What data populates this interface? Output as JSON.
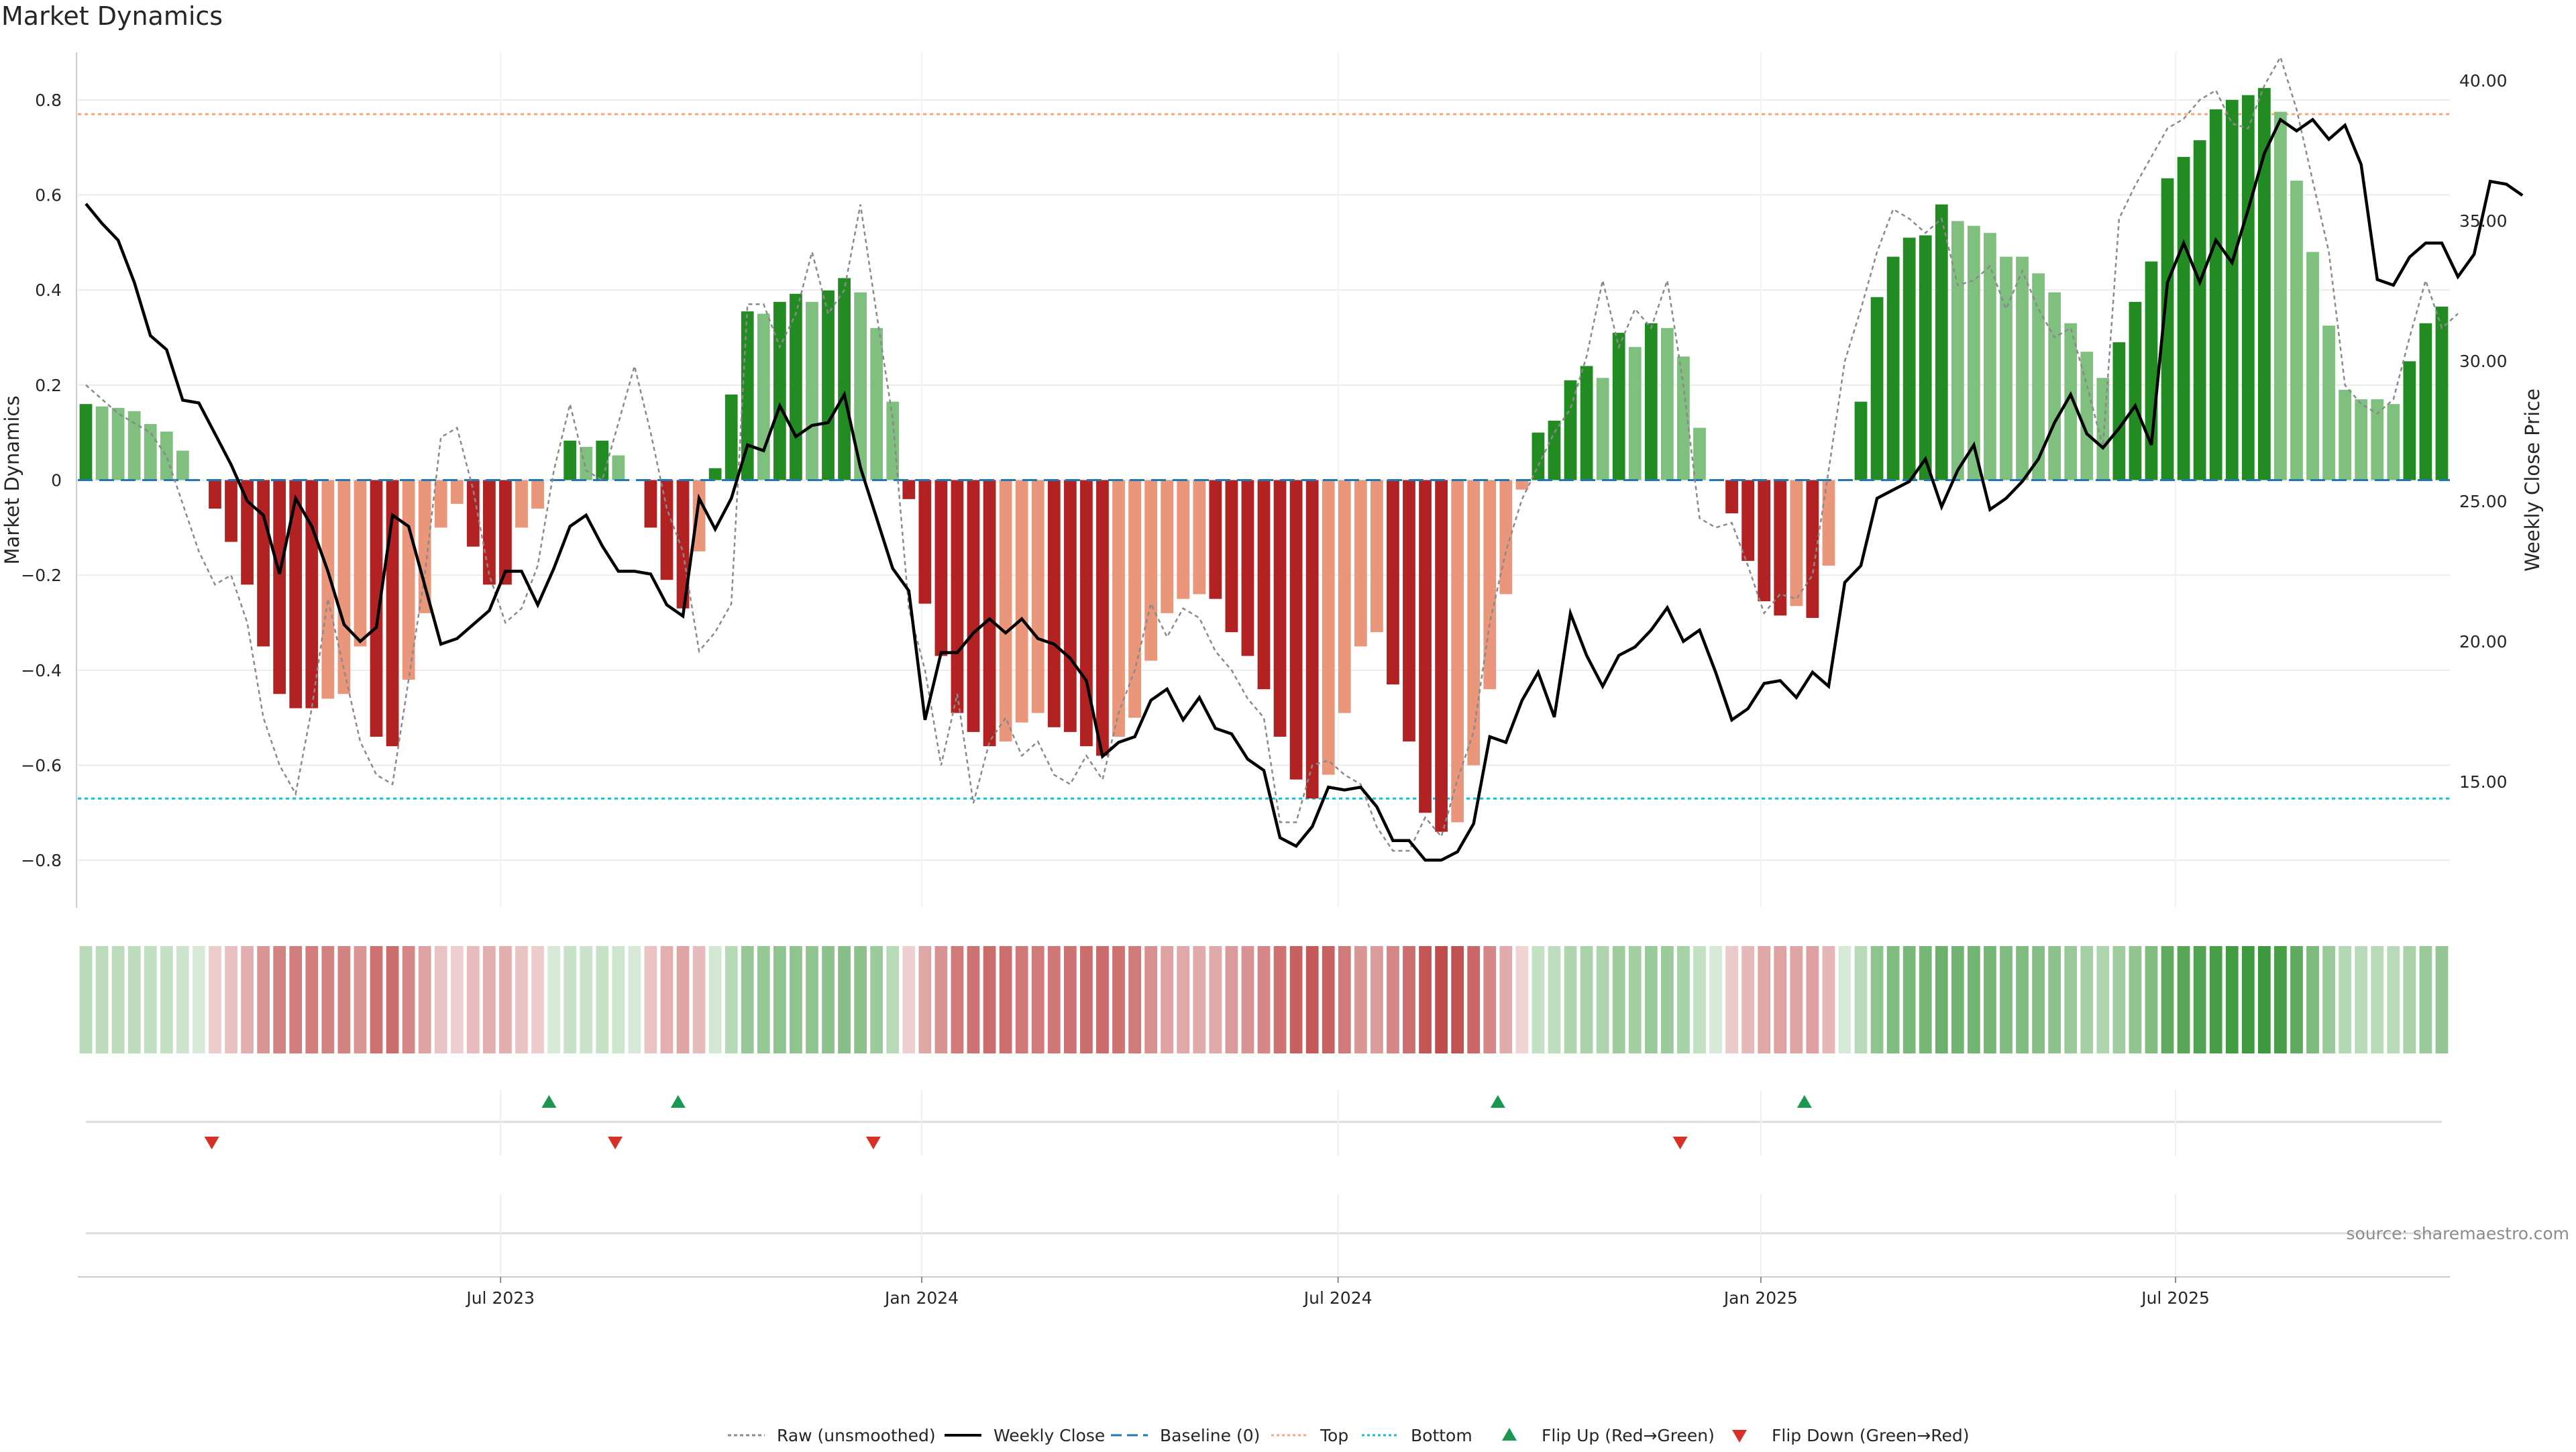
{
  "chart_data": {
    "type": "bar",
    "title": "Market Dynamics",
    "ylabel": "Market Dynamics",
    "y2label": "Weekly Close Price",
    "source": "source: sharemaestro.com",
    "ylim": [
      -0.9,
      0.9
    ],
    "y2lim": [
      10.5,
      41.0
    ],
    "yticks": [
      -0.8,
      -0.6,
      -0.4,
      -0.2,
      0,
      0.2,
      0.4,
      0.6,
      0.8
    ],
    "ytick_labels": [
      "−0.8",
      "−0.6",
      "−0.4",
      "−0.2",
      "0",
      "0.2",
      "0.4",
      "0.6",
      "0.8"
    ],
    "y2ticks": [
      15,
      20,
      25,
      30,
      35,
      40
    ],
    "y2tick_labels": [
      "15.00",
      "20.00",
      "25.00",
      "30.00",
      "35.00",
      "40.00"
    ],
    "x_dates": [
      "Jul 2023",
      "Jan 2024",
      "Jul 2024",
      "Jan 2025",
      "Jul 2025"
    ],
    "x_date_week_index": [
      26.2,
      52.3,
      78.1,
      104.3,
      130.0
    ],
    "top_line": 0.77,
    "bottom_line": -0.67,
    "baseline": 0,
    "bar_values": [
      0.16,
      0.155,
      0.152,
      0.145,
      0.118,
      0.102,
      0.062,
      0,
      -0.06,
      -0.13,
      -0.22,
      -0.35,
      -0.45,
      -0.48,
      -0.48,
      -0.46,
      -0.45,
      -0.35,
      -0.54,
      -0.56,
      -0.42,
      -0.28,
      -0.1,
      -0.05,
      -0.14,
      -0.22,
      -0.22,
      -0.1,
      -0.06,
      0,
      0.083,
      0.07,
      0.083,
      0.052,
      0,
      -0.1,
      -0.21,
      -0.27,
      -0.15,
      0.025,
      0.18,
      0.355,
      0.35,
      0.375,
      0.392,
      0.375,
      0.399,
      0.425,
      0.395,
      0.32,
      0.165,
      -0.04,
      -0.26,
      -0.37,
      -0.49,
      -0.53,
      -0.56,
      -0.55,
      -0.51,
      -0.49,
      -0.52,
      -0.53,
      -0.56,
      -0.58,
      -0.54,
      -0.5,
      -0.38,
      -0.28,
      -0.25,
      -0.24,
      -0.25,
      -0.32,
      -0.37,
      -0.44,
      -0.54,
      -0.63,
      -0.67,
      -0.62,
      -0.49,
      -0.35,
      -0.32,
      -0.43,
      -0.55,
      -0.7,
      -0.74,
      -0.72,
      -0.6,
      -0.44,
      -0.24,
      -0.02,
      0.1,
      0.125,
      0.21,
      0.24,
      0.215,
      0.31,
      0.28,
      0.33,
      0.32,
      0.26,
      0.11,
      0,
      -0.07,
      -0.17,
      -0.255,
      -0.285,
      -0.265,
      -0.29,
      -0.18,
      0,
      0.165,
      0.385,
      0.47,
      0.51,
      0.515,
      0.58,
      0.545,
      0.535,
      0.52,
      0.47,
      0.47,
      0.435,
      0.395,
      0.33,
      0.27,
      0.215,
      0.29,
      0.375,
      0.46,
      0.635,
      0.68,
      0.715,
      0.78,
      0.8,
      0.81,
      0.825,
      0.775,
      0.63,
      0.48,
      0.325,
      0.19,
      0.17,
      0.17,
      0.16,
      0.25,
      0.33,
      0.365
    ],
    "raw_values": [
      0.2,
      0.17,
      0.14,
      0.12,
      0.1,
      0.05,
      -0.05,
      -0.15,
      -0.22,
      -0.2,
      -0.3,
      -0.5,
      -0.6,
      -0.66,
      -0.48,
      -0.25,
      -0.4,
      -0.55,
      -0.62,
      -0.64,
      -0.42,
      -0.2,
      0.09,
      0.11,
      -0.02,
      -0.2,
      -0.3,
      -0.27,
      -0.18,
      0.02,
      0.16,
      0.02,
      0.0,
      0.12,
      0.24,
      0.1,
      -0.06,
      -0.15,
      -0.36,
      -0.32,
      -0.26,
      0.37,
      0.37,
      0.28,
      0.35,
      0.48,
      0.35,
      0.4,
      0.58,
      0.35,
      0.13,
      -0.27,
      -0.4,
      -0.6,
      -0.45,
      -0.68,
      -0.55,
      -0.5,
      -0.58,
      -0.55,
      -0.62,
      -0.64,
      -0.58,
      -0.63,
      -0.49,
      -0.4,
      -0.26,
      -0.33,
      -0.27,
      -0.29,
      -0.36,
      -0.4,
      -0.46,
      -0.5,
      -0.72,
      -0.72,
      -0.6,
      -0.59,
      -0.62,
      -0.64,
      -0.73,
      -0.78,
      -0.78,
      -0.71,
      -0.75,
      -0.63,
      -0.53,
      -0.3,
      -0.15,
      -0.04,
      0.03,
      0.1,
      0.15,
      0.26,
      0.42,
      0.28,
      0.36,
      0.32,
      0.42,
      0.2,
      -0.08,
      -0.1,
      -0.09,
      -0.18,
      -0.28,
      -0.24,
      -0.25,
      -0.2,
      0.02,
      0.25,
      0.36,
      0.48,
      0.57,
      0.55,
      0.52,
      0.55,
      0.41,
      0.42,
      0.45,
      0.36,
      0.44,
      0.36,
      0.3,
      0.32,
      0.2,
      0.07,
      0.55,
      0.62,
      0.68,
      0.74,
      0.76,
      0.8,
      0.82,
      0.75,
      0.74,
      0.83,
      0.89,
      0.78,
      0.63,
      0.48,
      0.2,
      0.16,
      0.14,
      0.17,
      0.3,
      0.42,
      0.32,
      0.35
    ],
    "weekly_close": [
      35.6,
      34.9,
      34.3,
      32.8,
      30.9,
      30.4,
      28.6,
      28.5,
      27.4,
      26.3,
      25.0,
      24.5,
      22.4,
      25.1,
      24.1,
      22.5,
      20.6,
      20.0,
      20.5,
      24.5,
      24.1,
      22.0,
      19.9,
      20.1,
      20.6,
      21.1,
      22.5,
      22.5,
      21.3,
      22.6,
      24.1,
      24.5,
      23.4,
      22.5,
      22.5,
      22.4,
      21.3,
      20.9,
      25.1,
      24.0,
      25.1,
      27.0,
      26.8,
      28.4,
      27.3,
      27.7,
      27.8,
      28.8,
      26.2,
      24.4,
      22.6,
      21.8,
      17.2,
      19.6,
      19.6,
      20.3,
      20.8,
      20.3,
      20.8,
      20.1,
      19.9,
      19.4,
      18.6,
      15.9,
      16.4,
      16.6,
      17.9,
      18.3,
      17.2,
      18.0,
      16.9,
      16.7,
      15.8,
      15.4,
      13.0,
      12.7,
      13.4,
      14.8,
      14.7,
      14.8,
      14.1,
      12.9,
      12.9,
      12.2,
      12.2,
      12.5,
      13.5,
      16.6,
      16.4,
      17.9,
      18.9,
      17.3,
      21.0,
      19.5,
      18.4,
      19.5,
      19.8,
      20.4,
      21.2,
      20.0,
      20.4,
      18.9,
      17.2,
      17.6,
      18.5,
      18.6,
      18.0,
      18.9,
      18.4,
      22.1,
      22.7,
      25.1,
      25.4,
      25.7,
      26.5,
      24.8,
      26.1,
      27.0,
      24.7,
      25.1,
      25.7,
      26.5,
      27.8,
      28.8,
      27.4,
      26.9,
      27.6,
      28.4,
      27.0,
      32.8,
      34.2,
      32.8,
      34.3,
      33.5,
      35.4,
      37.4,
      38.6,
      38.2,
      38.6,
      37.9,
      38.4,
      37.0,
      32.9,
      32.7,
      33.7,
      34.2,
      34.2,
      33.0,
      33.8,
      36.4,
      36.3,
      35.9
    ],
    "heat_strip_values": [
      0.16,
      0.155,
      0.152,
      0.145,
      0.118,
      0.102,
      0.062,
      0,
      -0.06,
      -0.13,
      -0.22,
      -0.35,
      -0.45,
      -0.48,
      -0.48,
      -0.46,
      -0.45,
      -0.35,
      -0.54,
      -0.56,
      -0.42,
      -0.28,
      -0.1,
      -0.05,
      -0.14,
      -0.22,
      -0.22,
      -0.1,
      -0.06,
      0,
      0.083,
      0.07,
      0.083,
      0.052,
      0,
      -0.1,
      -0.21,
      -0.27,
      -0.15,
      0.025,
      0.18,
      0.355,
      0.35,
      0.375,
      0.392,
      0.375,
      0.399,
      0.425,
      0.395,
      0.32,
      0.165,
      -0.04,
      -0.26,
      -0.37,
      -0.49,
      -0.53,
      -0.56,
      -0.55,
      -0.51,
      -0.49,
      -0.52,
      -0.53,
      -0.56,
      -0.58,
      -0.54,
      -0.5,
      -0.38,
      -0.28,
      -0.25,
      -0.24,
      -0.25,
      -0.32,
      -0.37,
      -0.44,
      -0.54,
      -0.63,
      -0.67,
      -0.62,
      -0.49,
      -0.35,
      -0.32,
      -0.43,
      -0.55,
      -0.7,
      -0.74,
      -0.72,
      -0.6,
      -0.44,
      -0.24,
      -0.02,
      0.1,
      0.125,
      0.21,
      0.24,
      0.215,
      0.31,
      0.28,
      0.33,
      0.32,
      0.26,
      0.11,
      0,
      -0.07,
      -0.17,
      -0.255,
      -0.285,
      -0.265,
      -0.29,
      -0.18,
      0,
      0.165,
      0.385,
      0.47,
      0.51,
      0.515,
      0.58,
      0.545,
      0.535,
      0.52,
      0.47,
      0.47,
      0.435,
      0.395,
      0.33,
      0.27,
      0.215,
      0.29,
      0.375,
      0.46,
      0.635,
      0.68,
      0.715,
      0.78,
      0.8,
      0.81,
      0.825,
      0.775,
      0.63,
      0.48,
      0.325,
      0.19,
      0.17,
      0.17,
      0.16,
      0.25,
      0.33,
      0.365
    ],
    "flip_up_week_index": [
      29.2,
      37.2,
      88.0,
      107.0
    ],
    "flip_down_week_index": [
      8.3,
      33.3,
      49.3,
      99.3
    ],
    "legend": [
      "Raw (unsmoothed)",
      "Weekly Close",
      "Baseline (0)",
      "Top",
      "Bottom",
      "Flip Up (Red→Green)",
      "Flip Down (Green→Red)"
    ],
    "legend_position": "bottom-center",
    "colors": {
      "strong_green": "#228b22",
      "light_green": "#7fc07f",
      "strong_red": "#b22222",
      "light_red": "#e9967a",
      "raw": "#8a8a8a",
      "close": "#000000",
      "baseline": "#1f77b4",
      "top": "#f4a582",
      "bottom": "#17becf",
      "flip_up": "#1a9850",
      "flip_down": "#d73027"
    }
  }
}
